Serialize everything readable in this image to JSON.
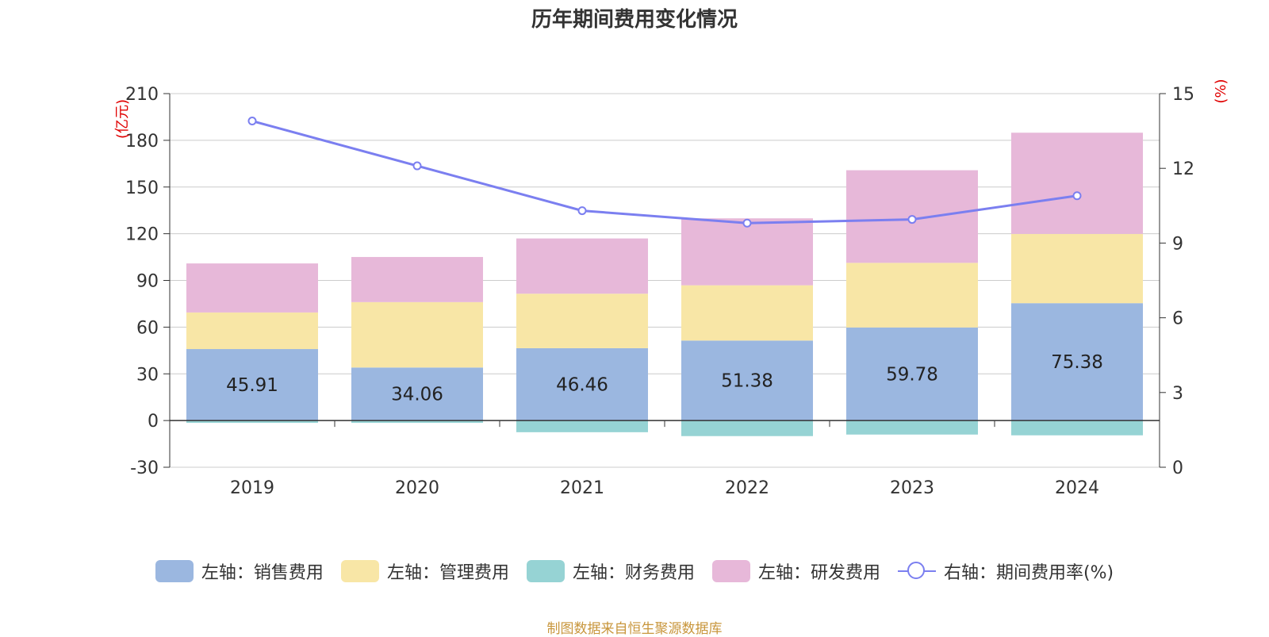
{
  "title": "历年期间费用变化情况",
  "source": "制图数据来自恒生聚源数据库",
  "chart_data": {
    "type": "bar",
    "categories": [
      "2019",
      "2020",
      "2021",
      "2022",
      "2023",
      "2024"
    ],
    "left_axis": {
      "unit": "(亿元)",
      "ylim": [
        -30,
        210
      ],
      "ticks": [
        -30,
        0,
        30,
        60,
        90,
        120,
        150,
        180,
        210
      ]
    },
    "right_axis": {
      "unit": "(%)",
      "ylim": [
        0,
        15
      ],
      "ticks": [
        0,
        3,
        6,
        9,
        12,
        15
      ]
    },
    "series": [
      {
        "name": "左轴：销售费用",
        "type": "bar",
        "stack": true,
        "color": "#9bb7e0",
        "values": [
          45.91,
          34.06,
          46.46,
          51.38,
          59.78,
          75.38
        ],
        "labels": [
          "45.91",
          "34.06",
          "46.46",
          "51.38",
          "59.78",
          "75.38"
        ]
      },
      {
        "name": "左轴：管理费用",
        "type": "bar",
        "stack": true,
        "color": "#f8e6a6",
        "values": [
          23.5,
          42.0,
          35.0,
          35.5,
          41.5,
          44.5
        ]
      },
      {
        "name": "左轴：财务费用",
        "type": "bar",
        "stack": true,
        "color": "#96d3d4",
        "values": [
          -1.5,
          -1.5,
          -7.5,
          -10.0,
          -9.0,
          -9.5
        ]
      },
      {
        "name": "左轴：研发费用",
        "type": "bar",
        "stack": true,
        "color": "#e7b8d9",
        "values": [
          31.5,
          29.0,
          35.5,
          43.0,
          59.5,
          65.0
        ]
      },
      {
        "name": "右轴：期间费用率(%)",
        "type": "line",
        "axis": "right",
        "color": "#7b7ff0",
        "values": [
          13.9,
          12.1,
          10.3,
          9.8,
          9.95,
          10.9
        ]
      }
    ],
    "grid": true,
    "legend_position": "bottom"
  }
}
